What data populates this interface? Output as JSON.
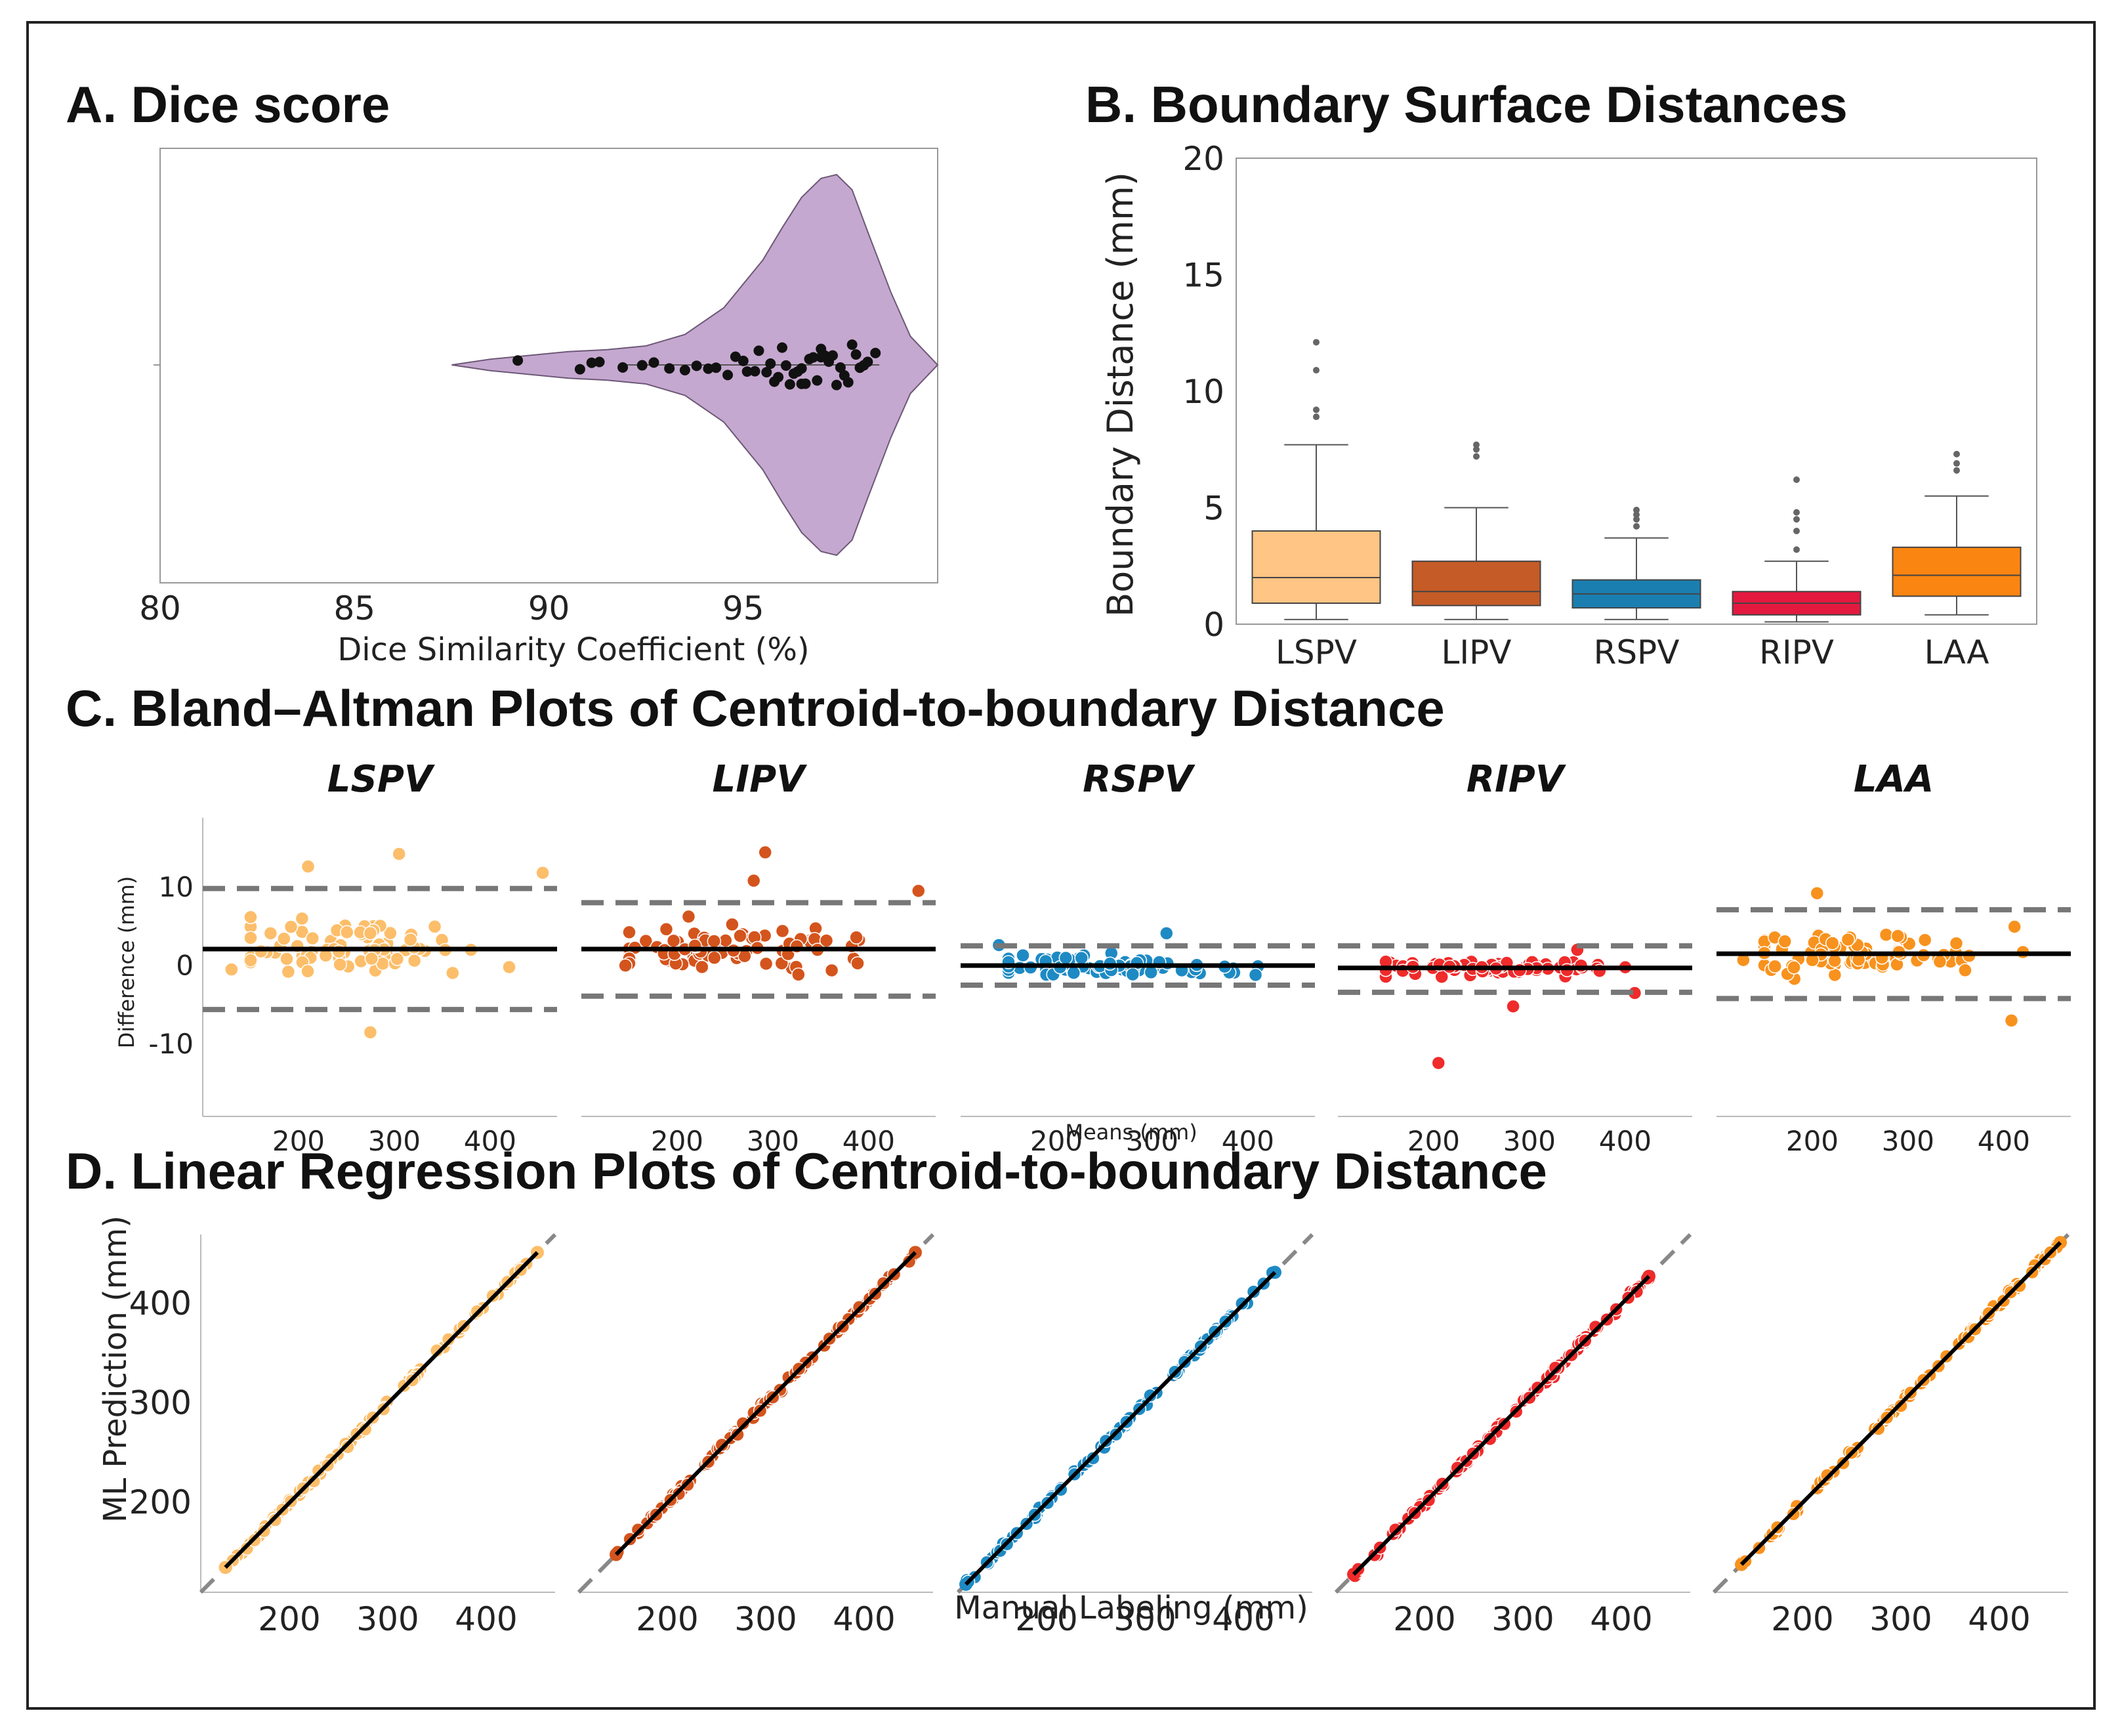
{
  "chart_data": [
    {
      "panel": "A",
      "type": "violin",
      "title": "A. Dice score",
      "xlabel": "Dice Similarity Coefficient (%)",
      "xlim": [
        80,
        100
      ],
      "xticks": [
        80,
        85,
        90,
        95
      ],
      "color": "#c5a8cf",
      "violin_profile": [
        {
          "x": 87.5,
          "w": 0.0
        },
        {
          "x": 88.5,
          "w": 0.03
        },
        {
          "x": 89.5,
          "w": 0.05
        },
        {
          "x": 90.5,
          "w": 0.07
        },
        {
          "x": 91.5,
          "w": 0.08
        },
        {
          "x": 92.5,
          "w": 0.1
        },
        {
          "x": 93.5,
          "w": 0.16
        },
        {
          "x": 94.5,
          "w": 0.3
        },
        {
          "x": 95.5,
          "w": 0.55
        },
        {
          "x": 96.0,
          "w": 0.72
        },
        {
          "x": 96.5,
          "w": 0.88
        },
        {
          "x": 97.0,
          "w": 0.98
        },
        {
          "x": 97.4,
          "w": 1.0
        },
        {
          "x": 97.8,
          "w": 0.92
        },
        {
          "x": 98.2,
          "w": 0.7
        },
        {
          "x": 98.8,
          "w": 0.38
        },
        {
          "x": 99.3,
          "w": 0.15
        },
        {
          "x": 100.0,
          "w": 0.0
        }
      ],
      "points": [
        89.2,
        90.8,
        91.1,
        91.3,
        91.9,
        92.4,
        92.7,
        93.1,
        93.5,
        93.8,
        94.1,
        94.3,
        94.6,
        94.8,
        95.0,
        95.1,
        95.3,
        95.4,
        95.6,
        95.7,
        95.8,
        95.9,
        96.0,
        96.1,
        96.2,
        96.3,
        96.4,
        96.5,
        96.5,
        96.6,
        96.7,
        96.8,
        96.9,
        97.0,
        97.0,
        97.1,
        97.2,
        97.3,
        97.4,
        97.5,
        97.6,
        97.7,
        97.8,
        97.9,
        98.0,
        98.1,
        98.2,
        98.4
      ]
    },
    {
      "panel": "B",
      "type": "box",
      "title": "B. Boundary Surface Distances",
      "ylabel": "Boundary Distance (mm)",
      "ylim": [
        0,
        20
      ],
      "yticks": [
        0,
        5,
        10,
        15,
        20
      ],
      "categories": [
        "LSPV",
        "LIPV",
        "RSPV",
        "RIPV",
        "LAA"
      ],
      "colors": [
        "#fec584",
        "#c55b27",
        "#1a7fb0",
        "#e4193f",
        "#fb8511"
      ],
      "boxes": [
        {
          "min": 0.2,
          "q1": 0.9,
          "median": 2.0,
          "q3": 4.0,
          "max": 7.7,
          "outliers": [
            8.9,
            9.2,
            10.9,
            12.1
          ]
        },
        {
          "min": 0.2,
          "q1": 0.8,
          "median": 1.4,
          "q3": 2.7,
          "max": 5.0,
          "outliers": [
            7.2,
            7.5,
            7.7
          ]
        },
        {
          "min": 0.2,
          "q1": 0.7,
          "median": 1.3,
          "q3": 1.9,
          "max": 3.7,
          "outliers": [
            4.2,
            4.5,
            4.7,
            4.9
          ]
        },
        {
          "min": 0.1,
          "q1": 0.4,
          "median": 0.9,
          "q3": 1.4,
          "max": 2.7,
          "outliers": [
            3.2,
            4.0,
            4.5,
            4.8,
            6.2
          ]
        },
        {
          "min": 0.4,
          "q1": 1.2,
          "median": 2.1,
          "q3": 3.3,
          "max": 5.5,
          "outliers": [
            6.6,
            6.9,
            7.3
          ]
        }
      ]
    },
    {
      "panel": "C",
      "type": "scatter",
      "title": "C. Bland–Altman Plots of Centroid-to-boundary Distance",
      "xlabel": "Means (mm)",
      "ylabel": "Difference (mm)",
      "xlim": [
        100,
        470
      ],
      "ylim": [
        -19,
        19
      ],
      "xticks": [
        200,
        300,
        400
      ],
      "yticks": [
        -10,
        0,
        10
      ],
      "subplots": [
        {
          "name": "LSPV",
          "color": "#fcbe6a",
          "mean_diff": 2.3,
          "upper_loa": 10.0,
          "lower_loa": -5.4,
          "seed": 11,
          "spread": 3.8,
          "outliers": [
            [
              305,
              14.4
            ],
            [
              210,
              12.8
            ],
            [
              455,
              12.0
            ],
            [
              275,
              -8.3
            ],
            [
              130,
              -0.3
            ]
          ]
        },
        {
          "name": "LIPV",
          "color": "#d4541d",
          "mean_diff": 2.3,
          "upper_loa": 8.2,
          "lower_loa": -3.7,
          "seed": 23,
          "spread": 2.8,
          "outliers": [
            [
              292,
              14.6
            ],
            [
              280,
              11.0
            ],
            [
              452,
              9.7
            ],
            [
              146,
              0.2
            ]
          ]
        },
        {
          "name": "RSPV",
          "color": "#1e8ac4",
          "mean_diff": 0.2,
          "upper_loa": 2.7,
          "lower_loa": -2.3,
          "seed": 37,
          "spread": 1.2,
          "outliers": [
            [
              140,
              2.8
            ],
            [
              315,
              4.3
            ],
            [
              408,
              -1.0
            ]
          ]
        },
        {
          "name": "RIPV",
          "color": "#ef2b2b",
          "mean_diff": -0.1,
          "upper_loa": 2.7,
          "lower_loa": -3.2,
          "seed": 51,
          "spread": 0.9,
          "outliers": [
            [
              205,
              -12.2
            ],
            [
              283,
              -5.0
            ],
            [
              410,
              -3.3
            ],
            [
              350,
              2.2
            ]
          ]
        },
        {
          "name": "LAA",
          "color": "#f8921e",
          "mean_diff": 1.7,
          "upper_loa": 7.3,
          "lower_loa": -4.0,
          "seed": 67,
          "spread": 2.6,
          "outliers": [
            [
              408,
              -6.8
            ],
            [
              205,
              9.4
            ],
            [
              128,
              0.9
            ]
          ]
        }
      ]
    },
    {
      "panel": "D",
      "type": "scatter",
      "title": "D. Linear Regression Plots of Centroid-to-boundary Distance",
      "xlabel": "Manual Labeling (mm)",
      "ylabel": "ML Prediction (mm)",
      "xlim": [
        110,
        470
      ],
      "ylim": [
        110,
        470
      ],
      "xticks": [
        200,
        300,
        400
      ],
      "yticks": [
        200,
        300,
        400
      ],
      "subplots": [
        {
          "name": "LSPV",
          "color": "#fcbe6a",
          "x_min": 135,
          "x_max": 452,
          "seed": 101
        },
        {
          "name": "LIPV",
          "color": "#d4541d",
          "x_min": 148,
          "x_max": 452,
          "seed": 202
        },
        {
          "name": "RSPV",
          "color": "#1e8ac4",
          "x_min": 118,
          "x_max": 432,
          "seed": 303
        },
        {
          "name": "RIPV",
          "color": "#ef2b2b",
          "x_min": 128,
          "x_max": 428,
          "seed": 404
        },
        {
          "name": "LAA",
          "color": "#f8921e",
          "x_min": 138,
          "x_max": 462,
          "seed": 505
        }
      ]
    }
  ]
}
